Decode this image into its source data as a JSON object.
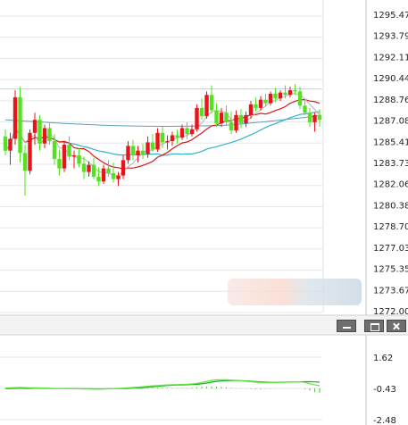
{
  "chart_data": [
    {
      "type": "candlestick",
      "title": "",
      "xlabel": "",
      "ylabel": "",
      "ylim": [
        1271.5,
        1296.5
      ],
      "yticks": [
        "1295.47",
        "1293.79",
        "1292.11",
        "1290.44",
        "1288.76",
        "1287.08",
        "1285.41",
        "1283.73",
        "1282.06",
        "1280.38",
        "1278.70",
        "1277.03",
        "1275.35",
        "1273.67",
        "1272.00"
      ],
      "reference_line": 1290.2,
      "colors": {
        "up": "#e8141b",
        "down": "#55e022",
        "ma_fast": "#b5b5b5",
        "ma_mid": "#d81818",
        "ma_slow": "#2fb3c9",
        "ma_long": "#5b9fb8"
      },
      "candles": [
        [
          1286.2,
          1286.8,
          1284.6,
          1285.0
        ],
        [
          1285.0,
          1286.5,
          1283.8,
          1286.0
        ],
        [
          1286.0,
          1290.1,
          1285.5,
          1289.5
        ],
        [
          1289.5,
          1290.4,
          1284.0,
          1284.8
        ],
        [
          1284.8,
          1285.5,
          1281.2,
          1283.3
        ],
        [
          1283.3,
          1286.8,
          1283.0,
          1286.5
        ],
        [
          1286.5,
          1288.2,
          1285.5,
          1287.6
        ],
        [
          1287.6,
          1288.0,
          1285.0,
          1285.6
        ],
        [
          1285.6,
          1287.2,
          1285.2,
          1286.9
        ],
        [
          1286.9,
          1287.3,
          1285.5,
          1285.8
        ],
        [
          1285.8,
          1286.4,
          1283.8,
          1284.3
        ],
        [
          1284.3,
          1285.1,
          1282.9,
          1283.5
        ],
        [
          1283.5,
          1285.8,
          1283.2,
          1285.5
        ],
        [
          1285.5,
          1286.2,
          1284.2,
          1284.5
        ],
        [
          1284.5,
          1285.0,
          1283.5,
          1284.6
        ],
        [
          1284.6,
          1285.2,
          1283.6,
          1283.9
        ],
        [
          1283.9,
          1284.5,
          1282.6,
          1283.2
        ],
        [
          1283.2,
          1284.1,
          1282.8,
          1283.8
        ],
        [
          1283.8,
          1284.4,
          1282.6,
          1282.8
        ],
        [
          1282.8,
          1283.6,
          1282.0,
          1282.4
        ],
        [
          1282.4,
          1283.8,
          1282.2,
          1283.5
        ],
        [
          1283.5,
          1284.2,
          1282.8,
          1283.1
        ],
        [
          1283.1,
          1284.0,
          1282.3,
          1282.6
        ],
        [
          1282.6,
          1283.2,
          1282.0,
          1282.9
        ],
        [
          1282.9,
          1284.6,
          1282.6,
          1284.2
        ],
        [
          1284.2,
          1285.8,
          1283.9,
          1285.4
        ],
        [
          1285.4,
          1285.9,
          1284.2,
          1284.6
        ],
        [
          1284.6,
          1285.4,
          1284.0,
          1285.0
        ],
        [
          1285.0,
          1285.6,
          1284.3,
          1284.7
        ],
        [
          1284.7,
          1286.2,
          1284.4,
          1285.7
        ],
        [
          1285.7,
          1286.4,
          1284.9,
          1285.1
        ],
        [
          1285.1,
          1286.9,
          1284.9,
          1286.5
        ],
        [
          1286.5,
          1287.0,
          1285.2,
          1285.7
        ],
        [
          1285.7,
          1286.3,
          1285.1,
          1285.8
        ],
        [
          1285.8,
          1286.6,
          1285.4,
          1286.3
        ],
        [
          1286.3,
          1286.8,
          1285.6,
          1286.1
        ],
        [
          1286.1,
          1287.2,
          1285.9,
          1286.9
        ],
        [
          1286.9,
          1287.4,
          1286.0,
          1286.4
        ],
        [
          1286.4,
          1287.2,
          1286.2,
          1286.8
        ],
        [
          1286.8,
          1288.9,
          1286.6,
          1288.6
        ],
        [
          1288.6,
          1289.4,
          1287.6,
          1287.9
        ],
        [
          1287.9,
          1290.0,
          1287.7,
          1289.7
        ],
        [
          1289.7,
          1290.5,
          1288.1,
          1288.4
        ],
        [
          1288.4,
          1289.0,
          1287.0,
          1287.3
        ],
        [
          1287.3,
          1288.6,
          1287.0,
          1288.2
        ],
        [
          1288.2,
          1288.8,
          1287.1,
          1287.4
        ],
        [
          1287.4,
          1288.3,
          1286.4,
          1286.7
        ],
        [
          1286.7,
          1288.4,
          1286.5,
          1288.0
        ],
        [
          1288.0,
          1288.5,
          1286.9,
          1287.3
        ],
        [
          1287.3,
          1288.3,
          1287.0,
          1288.0
        ],
        [
          1288.0,
          1289.2,
          1287.7,
          1288.9
        ],
        [
          1288.9,
          1289.5,
          1288.3,
          1288.6
        ],
        [
          1288.6,
          1289.6,
          1288.4,
          1289.3
        ],
        [
          1289.3,
          1289.8,
          1288.7,
          1289.0
        ],
        [
          1289.0,
          1290.0,
          1288.8,
          1289.8
        ],
        [
          1289.8,
          1290.3,
          1289.1,
          1289.4
        ],
        [
          1289.4,
          1290.1,
          1289.2,
          1289.9
        ],
        [
          1289.9,
          1290.5,
          1289.4,
          1289.7
        ],
        [
          1289.7,
          1290.4,
          1289.5,
          1290.1
        ],
        [
          1290.1,
          1290.6,
          1289.7,
          1290.0
        ],
        [
          1290.0,
          1290.4,
          1288.5,
          1288.8
        ],
        [
          1288.8,
          1289.4,
          1288.0,
          1288.2
        ],
        [
          1288.2,
          1288.6,
          1287.0,
          1287.4
        ],
        [
          1287.4,
          1288.2,
          1286.6,
          1288.0
        ],
        [
          1288.0,
          1288.5,
          1287.0,
          1287.6
        ]
      ]
    },
    {
      "type": "line",
      "title": "",
      "xlabel": "",
      "ylabel": "",
      "ylim": [
        -2.48,
        1.62
      ],
      "yticks": [
        "1.62",
        "-0.43",
        "-2.48"
      ],
      "series": [
        {
          "values": [
            -0.44,
            -0.44,
            -0.43,
            -0.42,
            -0.43,
            -0.43,
            -0.42,
            -0.42,
            -0.43,
            -0.43,
            -0.44,
            -0.44,
            -0.44,
            -0.44,
            -0.44,
            -0.45,
            -0.45,
            -0.45,
            -0.46,
            -0.46,
            -0.46,
            -0.45,
            -0.45,
            -0.45,
            -0.44,
            -0.43,
            -0.41,
            -0.4,
            -0.38,
            -0.35,
            -0.32,
            -0.29,
            -0.26,
            -0.24,
            -0.22,
            -0.21,
            -0.2,
            -0.19,
            -0.18,
            -0.16,
            -0.13,
            -0.08,
            -0.02,
            0.03,
            0.06,
            0.08,
            0.09,
            0.09,
            0.08,
            0.06,
            0.04,
            0.02,
            0.0,
            -0.02,
            -0.03,
            -0.03,
            -0.02,
            -0.02,
            -0.01,
            -0.01,
            0.0,
            0.01,
            0.01,
            0.0,
            -0.02
          ]
        },
        {
          "values": [
            -0.4,
            -0.39,
            -0.38,
            -0.37,
            -0.38,
            -0.39,
            -0.39,
            -0.4,
            -0.41,
            -0.42,
            -0.43,
            -0.44,
            -0.44,
            -0.45,
            -0.45,
            -0.46,
            -0.47,
            -0.47,
            -0.48,
            -0.48,
            -0.47,
            -0.46,
            -0.45,
            -0.43,
            -0.41,
            -0.39,
            -0.37,
            -0.35,
            -0.32,
            -0.29,
            -0.26,
            -0.24,
            -0.22,
            -0.2,
            -0.19,
            -0.18,
            -0.17,
            -0.16,
            -0.14,
            -0.1,
            -0.04,
            0.03,
            0.09,
            0.13,
            0.14,
            0.14,
            0.12,
            0.1,
            0.07,
            0.04,
            0.01,
            -0.02,
            -0.04,
            -0.05,
            -0.05,
            -0.04,
            -0.03,
            -0.02,
            -0.02,
            -0.01,
            0.0,
            -0.04,
            -0.12,
            -0.2,
            -0.26
          ]
        }
      ],
      "histogram": [
        0.04,
        0.06,
        0.07,
        0.08,
        0.07,
        0.05,
        0.04,
        0.03,
        0.02,
        0.02,
        0.01,
        0.0,
        0.0,
        -0.01,
        -0.01,
        -0.01,
        -0.02,
        -0.02,
        -0.02,
        -0.02,
        -0.01,
        -0.01,
        0.0,
        0.02,
        0.03,
        0.04,
        0.04,
        0.05,
        0.06,
        0.06,
        0.06,
        0.05,
        0.04,
        0.04,
        0.03,
        0.03,
        0.03,
        0.03,
        0.04,
        0.06,
        0.09,
        0.11,
        0.11,
        0.1,
        0.08,
        0.06,
        0.03,
        0.01,
        -0.01,
        -0.02,
        -0.03,
        -0.04,
        -0.04,
        -0.03,
        -0.02,
        -0.01,
        -0.01,
        0.0,
        0.0,
        0.0,
        0.0,
        -0.05,
        -0.13,
        -0.2,
        -0.24
      ]
    }
  ]
}
